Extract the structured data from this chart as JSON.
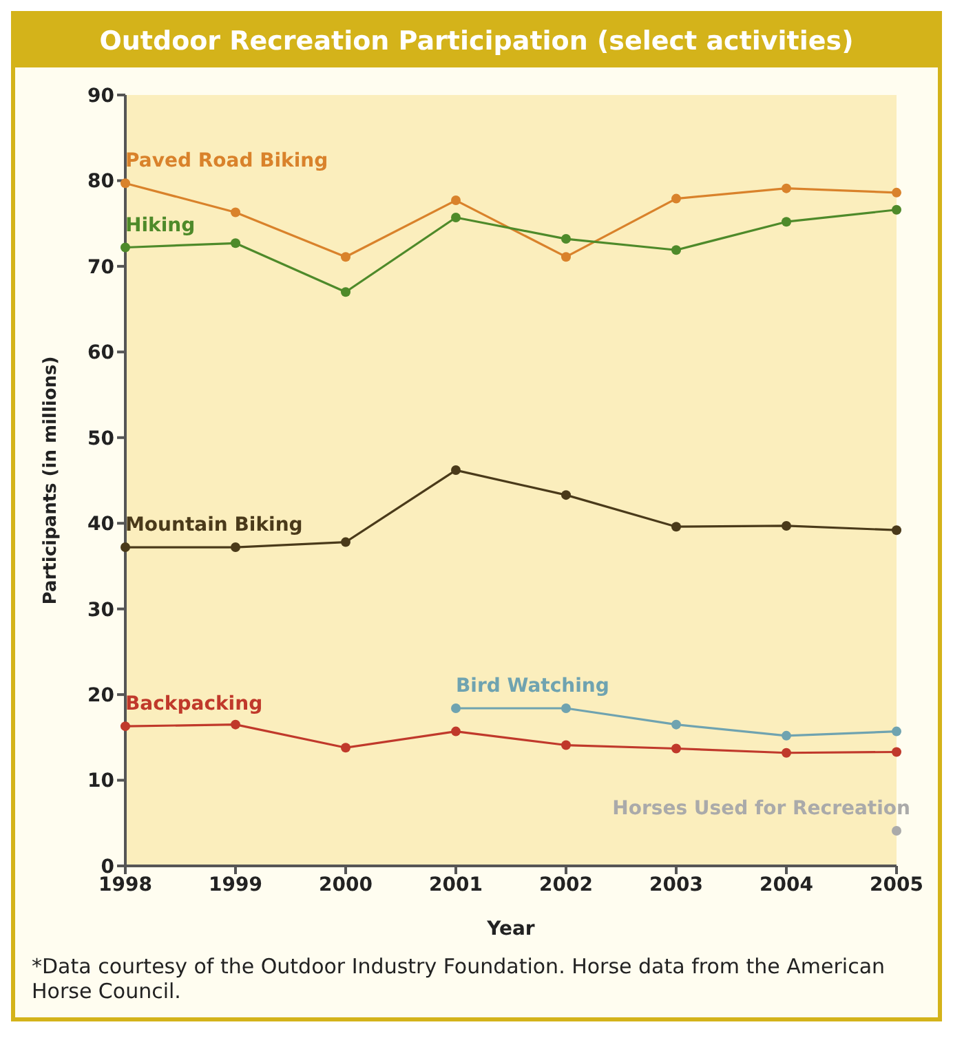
{
  "chart_data": {
    "type": "line",
    "title": "Outdoor Recreation Participation (select activities)",
    "xlabel": "Year",
    "ylabel": "Participants (in millions)",
    "categories": [
      "1998",
      "1999",
      "2000",
      "2001",
      "2002",
      "2003",
      "2004",
      "2005"
    ],
    "series": [
      {
        "name": "Paved Road Biking",
        "color": "#d9822b",
        "values": [
          79.7,
          76.3,
          71.1,
          77.7,
          71.1,
          77.9,
          79.1,
          78.6
        ]
      },
      {
        "name": "Hiking",
        "color": "#4e8a2a",
        "values": [
          72.2,
          72.7,
          67.0,
          75.7,
          73.2,
          71.9,
          75.2,
          76.6
        ]
      },
      {
        "name": "Mountain Biking",
        "color": "#4a3a1a",
        "values": [
          37.2,
          37.2,
          37.8,
          46.2,
          43.3,
          39.6,
          39.7,
          39.2
        ]
      },
      {
        "name": "Backpacking",
        "color": "#c0392b",
        "values": [
          16.3,
          16.5,
          13.8,
          15.7,
          14.1,
          13.7,
          13.2,
          13.3
        ]
      },
      {
        "name": "Bird Watching",
        "color": "#6fa3b0",
        "values": [
          null,
          null,
          null,
          18.4,
          18.4,
          16.5,
          15.2,
          15.7
        ]
      },
      {
        "name": "Horses Used for Recreation",
        "color": "#aaaaaa",
        "values": [
          null,
          null,
          null,
          null,
          null,
          null,
          null,
          4.1
        ]
      }
    ],
    "ylim": [
      0,
      90
    ],
    "yticks": [
      0,
      10,
      20,
      30,
      40,
      50,
      60,
      70,
      80,
      90
    ],
    "marker": "circle",
    "legend": false,
    "annotations": [
      "*Data courtesy of the Outdoor Industry Foundation. Horse data from the American Horse Council."
    ]
  }
}
